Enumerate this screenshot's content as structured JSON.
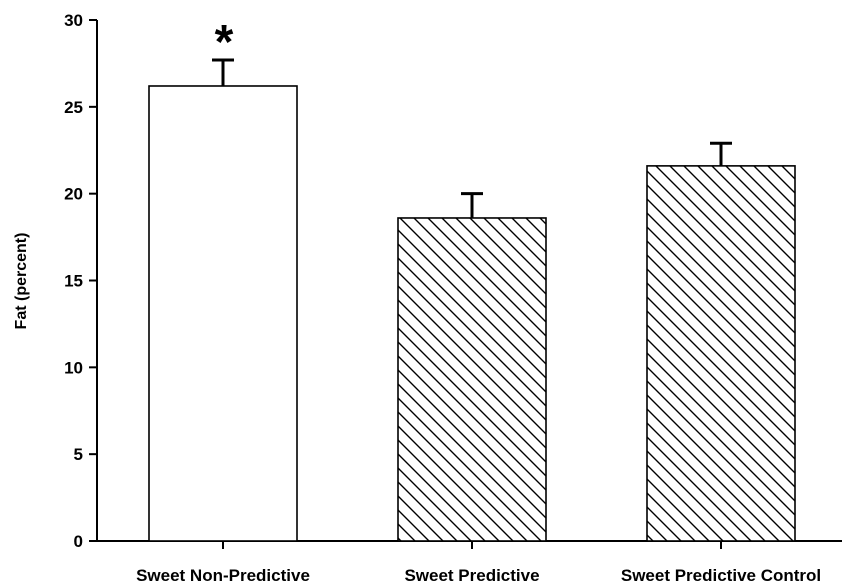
{
  "chart_data": {
    "type": "bar",
    "title": "",
    "xlabel": "",
    "ylabel": "Fat (percent)",
    "ylim": [
      0,
      30
    ],
    "yticks": [
      0,
      5,
      10,
      15,
      20,
      25,
      30
    ],
    "grid": false,
    "legend": "none",
    "categories": [
      "Sweet Non-Predictive",
      "Sweet Predictive",
      "Sweet Predictive Control"
    ],
    "values": [
      26.2,
      18.6,
      21.6
    ],
    "errors": [
      1.5,
      1.4,
      1.3
    ],
    "fill_patterns": [
      "none",
      "diagonal-hatch",
      "diagonal-hatch"
    ],
    "annotations": [
      {
        "category": "Sweet Non-Predictive",
        "text": "*"
      }
    ]
  }
}
